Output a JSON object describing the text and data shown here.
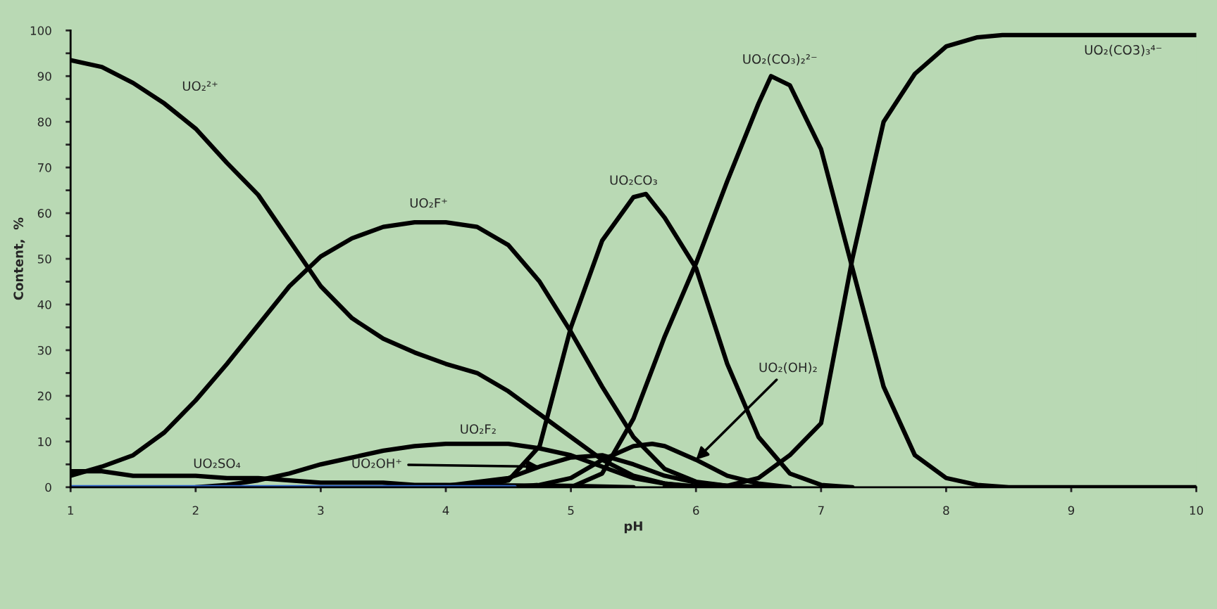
{
  "chart_data": {
    "type": "line",
    "xlabel": "pH",
    "ylabel": "Content,  %",
    "xlim": [
      1,
      10
    ],
    "xticks": [
      1,
      2,
      3,
      4,
      5,
      6,
      7,
      8,
      9,
      10
    ],
    "ylim": [
      0,
      100
    ],
    "yticks": [
      0,
      {
        "value": 5,
        "label": null
      },
      10,
      {
        "value": 15,
        "label": null
      },
      20,
      {
        "value": 25,
        "label": null
      },
      30,
      {
        "value": 35,
        "label": null
      },
      40,
      {
        "value": 45,
        "label": null
      },
      50,
      {
        "value": 55,
        "label": null
      },
      60,
      {
        "value": 65,
        "label": null
      },
      70,
      {
        "value": 75,
        "label": null
      },
      80,
      {
        "value": 85,
        "label": null
      },
      90,
      {
        "value": 95,
        "label": null
      },
      100
    ],
    "grid": false,
    "legend": false,
    "marker": "none",
    "line_style": "solid",
    "series": [
      {
        "color": "#000000",
        "x": [
          1,
          1.25,
          1.5,
          1.75,
          2,
          2.25,
          2.5,
          2.75,
          3,
          3.25,
          3.5,
          3.75,
          4,
          4.25,
          4.5,
          4.75,
          5,
          5.25,
          5.5,
          5.75,
          6
        ],
        "values": [
          93.5,
          92,
          88.5,
          84,
          78.5,
          71,
          64,
          54,
          44,
          37,
          32.5,
          29.5,
          27,
          25,
          21,
          16,
          11,
          6,
          2.5,
          0.8,
          0
        ]
      },
      {
        "color": "#000000",
        "x": [
          1,
          1.25,
          1.5,
          1.75,
          2,
          2.25,
          2.5,
          2.75,
          3,
          3.25,
          3.5,
          3.75,
          4,
          4.25,
          4.5,
          4.75,
          5,
          5.25,
          5.5,
          5.75,
          6,
          6.25,
          6.6
        ],
        "values": [
          2.5,
          4.5,
          7,
          12,
          19,
          27,
          35.5,
          44,
          50.5,
          54.5,
          57,
          58,
          58,
          57,
          53,
          45,
          34,
          22,
          11,
          4,
          1.2,
          0.3,
          0
        ]
      },
      {
        "color": "#000000",
        "x": [
          4,
          4.25,
          4.5,
          4.75,
          5,
          5.25,
          5.5,
          5.6,
          5.75,
          6,
          6.25,
          6.5,
          6.75,
          7,
          7.25
        ],
        "values": [
          0,
          0.3,
          1.5,
          9,
          35,
          54,
          63.5,
          64.2,
          59,
          48,
          27,
          11,
          3,
          0.5,
          0
        ]
      },
      {
        "color": "#000000",
        "x": [
          4.4,
          5,
          5.25,
          5.5,
          5.75,
          6,
          6.25,
          6.5,
          6.6,
          6.75,
          7,
          7.25,
          7.5,
          7.75,
          8,
          8.25,
          8.5,
          10
        ],
        "values": [
          0,
          0,
          3,
          15,
          33,
          49,
          67,
          84,
          90,
          88,
          74,
          48,
          22,
          7,
          2,
          0.5,
          0,
          0
        ]
      },
      {
        "color": "#000000",
        "x": [
          5.75,
          6.25,
          6.5,
          6.75,
          7,
          7.25,
          7.5,
          7.75,
          8,
          8.25,
          8.45,
          10
        ],
        "values": [
          0,
          0.3,
          2,
          7,
          14,
          50,
          80,
          90.5,
          96.5,
          98.5,
          99,
          99
        ]
      },
      {
        "color": "#000000",
        "x": [
          4.5,
          4.75,
          5,
          5.25,
          5.5,
          5.65,
          5.75,
          6,
          6.25,
          6.5,
          6.75
        ],
        "values": [
          0,
          0.5,
          2,
          6,
          9,
          9.5,
          9,
          6,
          2.5,
          0.8,
          0
        ]
      },
      {
        "color": "#000000",
        "x": [
          2,
          2.25,
          2.5,
          2.75,
          3,
          3.25,
          3.5,
          3.75,
          4,
          4.25,
          4.5,
          4.75,
          5,
          5.25,
          5.5,
          5.75,
          6,
          6.25
        ],
        "values": [
          0,
          0.5,
          1.5,
          3,
          5,
          6.5,
          8,
          9,
          9.5,
          9.5,
          9.5,
          8.5,
          7,
          4.5,
          2,
          0.8,
          0.2,
          0
        ]
      },
      {
        "color": "#000000",
        "x": [
          3.5,
          4,
          4.5,
          4.75,
          5,
          5.25,
          5.5,
          5.75,
          6,
          6.25,
          6.5
        ],
        "values": [
          0,
          0.3,
          2,
          4.5,
          6.5,
          7,
          5,
          2.5,
          1,
          0.3,
          0
        ]
      },
      {
        "color": "#000000",
        "x": [
          1,
          1.25,
          1.5,
          2,
          2.25,
          2.5,
          2.75,
          3,
          3.5,
          3.75,
          4,
          5,
          5.5
        ],
        "values": [
          3.5,
          3.5,
          2.5,
          2.5,
          2,
          2,
          1.5,
          1,
          1,
          0.5,
          0.5,
          0.3,
          0
        ]
      },
      {
        "color": "#3366cc",
        "x": [
          1,
          4.55
        ],
        "values": [
          0,
          0
        ]
      }
    ],
    "annotations": [
      "UO₂²⁺",
      "UO₂F⁺",
      "UO₂CO₃",
      "UO₂(CO₃)₂²⁻",
      "UO₂(CO3)₃⁴⁻",
      "UO₂F₂",
      "UO₂SO₄",
      {
        "text": "UO₂OH⁺",
        "x": 4.75,
        "y": 4.5
      },
      {
        "text": "UO₂(OH)₂",
        "x": 6,
        "y": 6
      }
    ]
  }
}
